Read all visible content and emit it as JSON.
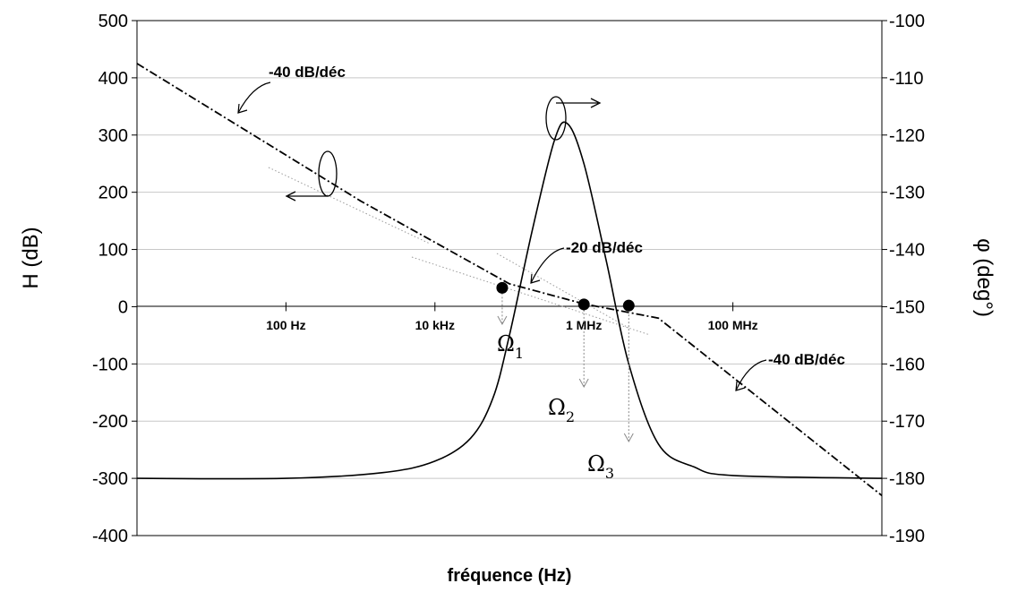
{
  "chart_data": {
    "type": "line",
    "xlabel": "fréquence (Hz)",
    "ylabel_left": "H (dB)",
    "ylabel_right": "φ (deg°)",
    "ylim_left": [
      -400,
      500
    ],
    "ylim_right": [
      -190,
      -100
    ],
    "yticks_left": [
      -400,
      -300,
      -200,
      -100,
      0,
      100,
      200,
      300,
      400,
      500
    ],
    "yticks_right": [
      -190,
      -180,
      -170,
      -160,
      -150,
      -140,
      -130,
      -120,
      -110,
      -100
    ],
    "x_scale": "log",
    "xlim_log10": [
      0,
      10
    ],
    "xticks": [
      {
        "value": 100,
        "label": "100 Hz"
      },
      {
        "value": 10000,
        "label": "10 kHz"
      },
      {
        "value": 1000000,
        "label": "1 MHz"
      },
      {
        "value": 100000000,
        "label": "100 MHz"
      }
    ],
    "grid": true,
    "series": [
      {
        "axis": "left",
        "style": "dash-dot",
        "points": [
          [
            1,
            425
          ],
          [
            1000,
            185
          ],
          [
            100000,
            40
          ],
          [
            1000000,
            5
          ],
          [
            10000000,
            -20
          ],
          [
            10000000000,
            -330
          ]
        ]
      },
      {
        "axis": "right",
        "style": "solid",
        "points": [
          [
            1,
            -180
          ],
          [
            100,
            -180
          ],
          [
            2000,
            -179
          ],
          [
            10000,
            -177
          ],
          [
            30000,
            -173
          ],
          [
            60000,
            -166
          ],
          [
            100000,
            -155
          ],
          [
            200000,
            -137
          ],
          [
            400000,
            -121
          ],
          [
            600000,
            -118
          ],
          [
            1000000,
            -125
          ],
          [
            2000000,
            -142
          ],
          [
            4000000,
            -160
          ],
          [
            10000000,
            -174
          ],
          [
            30000000,
            -178
          ],
          [
            100000000,
            -179.5
          ],
          [
            10000000000,
            -180
          ]
        ]
      }
    ],
    "annotations": [
      {
        "text": "-40 dB/déc",
        "x": 1000,
        "y": 400
      },
      {
        "text": "-20 dB/déc",
        "x": 1000000,
        "y": 100
      },
      {
        "text": "-40 dB/déc",
        "x": 400000000,
        "y": -90
      }
    ],
    "markers": [
      {
        "label": "Ω",
        "sub": "1",
        "x": 80000,
        "y": 33
      },
      {
        "label": "Ω",
        "sub": "2",
        "x": 1000000,
        "y": 4
      },
      {
        "label": "Ω",
        "sub": "3",
        "x": 4000000,
        "y": 2
      }
    ]
  }
}
